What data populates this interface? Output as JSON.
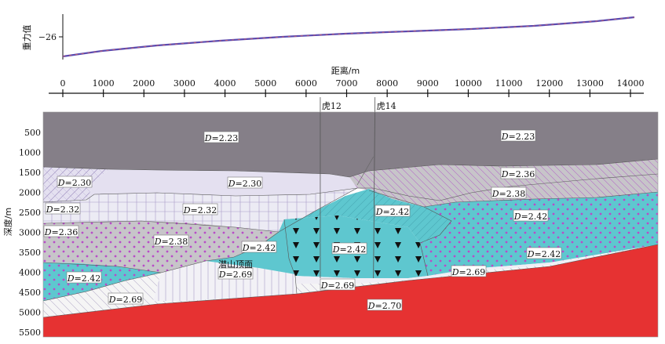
{
  "gravity_panel": {
    "ylabel": "重力值",
    "tick_label": "−26",
    "tick_value": -26
  },
  "distance_axis": {
    "title": "距离/m",
    "ticks": [
      0,
      1000,
      2000,
      3000,
      4000,
      5000,
      6000,
      7000,
      8000,
      9000,
      10000,
      11000,
      12000,
      13000,
      14000
    ],
    "range": [
      0,
      14200
    ]
  },
  "depth_axis": {
    "title": "深度/m",
    "ticks": [
      500,
      1000,
      1500,
      2000,
      2500,
      3000,
      3500,
      4000,
      4500,
      5000,
      5500
    ],
    "range": [
      0,
      5600
    ]
  },
  "wells": [
    {
      "name": "虎12",
      "x": 6350
    },
    {
      "name": "虎14",
      "x": 7700
    }
  ],
  "annotation": {
    "name": "潜山顶面"
  },
  "density_labels": [
    {
      "prefix": "D",
      "value": "=2.23"
    },
    {
      "prefix": "D",
      "value": "=2.23"
    },
    {
      "prefix": "D",
      "value": "=2.30"
    },
    {
      "prefix": "D",
      "value": "=2.30"
    },
    {
      "prefix": "D",
      "value": "=2.36"
    },
    {
      "prefix": "D",
      "value": "=2.38"
    },
    {
      "prefix": "D",
      "value": "=2.32"
    },
    {
      "prefix": "D",
      "value": "=2.32"
    },
    {
      "prefix": "D",
      "value": "=2.42"
    },
    {
      "prefix": "D",
      "value": "=2.42"
    },
    {
      "prefix": "D",
      "value": "=2.36"
    },
    {
      "prefix": "D",
      "value": "=2.38"
    },
    {
      "prefix": "D",
      "value": "=2.42"
    },
    {
      "prefix": "D",
      "value": "=2.42"
    },
    {
      "prefix": "D",
      "value": "=2.42"
    },
    {
      "prefix": "D",
      "value": "=2.42"
    },
    {
      "prefix": "D",
      "value": "=2.69"
    },
    {
      "prefix": "D",
      "value": "=2.69"
    },
    {
      "prefix": "D",
      "value": "=2.69"
    },
    {
      "prefix": "D",
      "value": "=2.69"
    },
    {
      "prefix": "D",
      "value": "=2.70"
    }
  ],
  "colors": {
    "top_layer": "#857f88",
    "lavender": "#e4e0f0",
    "light_lavender": "#ecebf4",
    "gray_layer": "#c7c5c9",
    "cyan": "#5ec7cf",
    "dots_purple": "#b84cc8",
    "basement": "#e63232",
    "light_gray": "#e9e9ea",
    "gravity_curve": "#5a4ab0"
  }
}
